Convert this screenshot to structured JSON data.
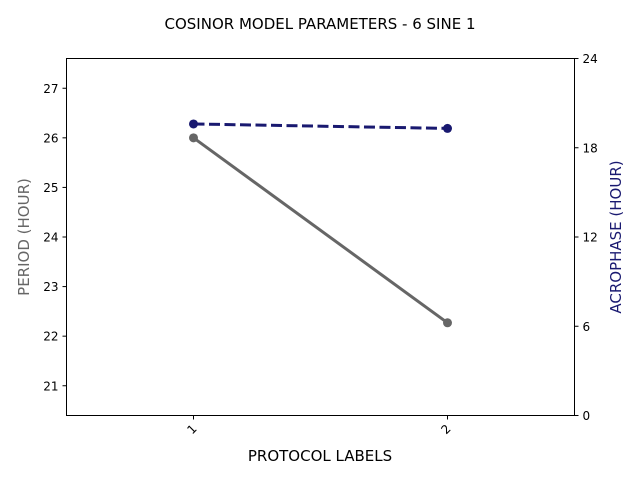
{
  "chart_data": {
    "type": "line",
    "title": "COSINOR MODEL PARAMETERS - 6 SINE 1",
    "xlabel": "PROTOCOL LABELS",
    "categories": [
      "1",
      "2"
    ],
    "y_left": {
      "label": "PERIOD (HOUR)",
      "ylim": [
        20.4,
        27.6
      ],
      "ticks": [
        21,
        22,
        23,
        24,
        25,
        26,
        27
      ],
      "color": "#666666"
    },
    "y_right": {
      "label": "ACROPHASE (HOUR)",
      "ylim": [
        0,
        24
      ],
      "ticks": [
        0,
        6,
        12,
        18,
        24
      ],
      "color": "#191970"
    },
    "series": [
      {
        "axis": "left",
        "values": [
          26.0,
          22.27
        ],
        "color": "#666666",
        "line_style": "solid"
      },
      {
        "axis": "right",
        "values": [
          19.6,
          19.3
        ],
        "color": "#191970",
        "line_style": "dashed"
      }
    ],
    "grid": false,
    "legend": "none"
  }
}
